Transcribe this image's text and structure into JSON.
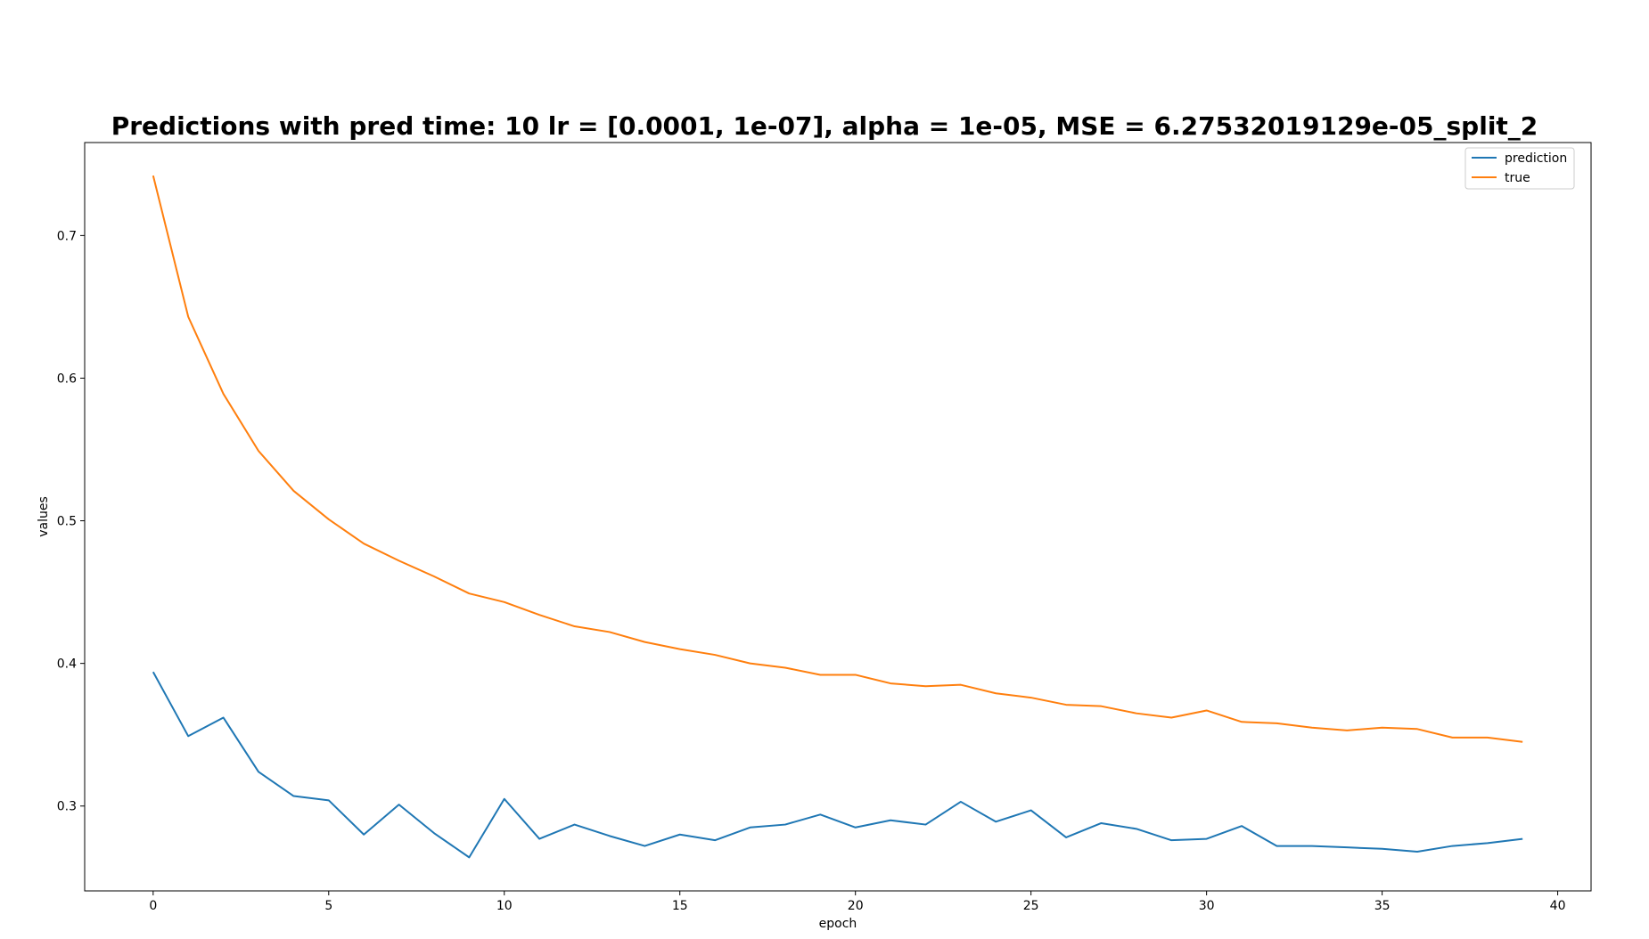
{
  "chart_data": {
    "type": "line",
    "title": "Predictions with pred time: 10 lr = [0.0001, 1e-07], alpha = 1e-05, MSE = 6.27532019129e-05_split_2",
    "xlabel": "epoch",
    "ylabel": "values",
    "xlim": [
      -1.95,
      40.95
    ],
    "ylim": [
      0.2405,
      0.7652
    ],
    "x_ticks": [
      0,
      5,
      10,
      15,
      20,
      25,
      30,
      35,
      40
    ],
    "y_ticks": [
      0.3,
      0.4,
      0.5,
      0.6,
      0.7
    ],
    "x_tick_labels": [
      "0",
      "5",
      "10",
      "15",
      "20",
      "25",
      "30",
      "35",
      "40"
    ],
    "y_tick_labels": [
      "0.3",
      "0.4",
      "0.5",
      "0.6",
      "0.7"
    ],
    "grid": false,
    "legend_position": "top-right",
    "x": [
      0,
      1,
      2,
      3,
      4,
      5,
      6,
      7,
      8,
      9,
      10,
      11,
      12,
      13,
      14,
      15,
      16,
      17,
      18,
      19,
      20,
      21,
      22,
      23,
      24,
      25,
      26,
      27,
      28,
      29,
      30,
      31,
      32,
      33,
      34,
      35,
      36,
      37,
      38,
      39
    ],
    "series": [
      {
        "name": "prediction",
        "color": "#1f77b4",
        "values": [
          0.394,
          0.349,
          0.362,
          0.324,
          0.307,
          0.304,
          0.28,
          0.301,
          0.281,
          0.264,
          0.305,
          0.277,
          0.287,
          0.279,
          0.272,
          0.28,
          0.276,
          0.285,
          0.287,
          0.294,
          0.285,
          0.29,
          0.287,
          0.303,
          0.289,
          0.297,
          0.278,
          0.288,
          0.284,
          0.276,
          0.277,
          0.286,
          0.272,
          0.272,
          0.271,
          0.27,
          0.268,
          0.272,
          0.274,
          0.277
        ]
      },
      {
        "name": "true",
        "color": "#ff7f0e",
        "values": [
          0.742,
          0.643,
          0.589,
          0.549,
          0.521,
          0.501,
          0.484,
          0.472,
          0.461,
          0.449,
          0.443,
          0.434,
          0.426,
          0.422,
          0.415,
          0.41,
          0.406,
          0.4,
          0.397,
          0.392,
          0.392,
          0.386,
          0.384,
          0.385,
          0.379,
          0.376,
          0.371,
          0.37,
          0.365,
          0.362,
          0.367,
          0.359,
          0.358,
          0.355,
          0.353,
          0.355,
          0.354,
          0.348,
          0.348,
          0.345
        ]
      }
    ]
  }
}
